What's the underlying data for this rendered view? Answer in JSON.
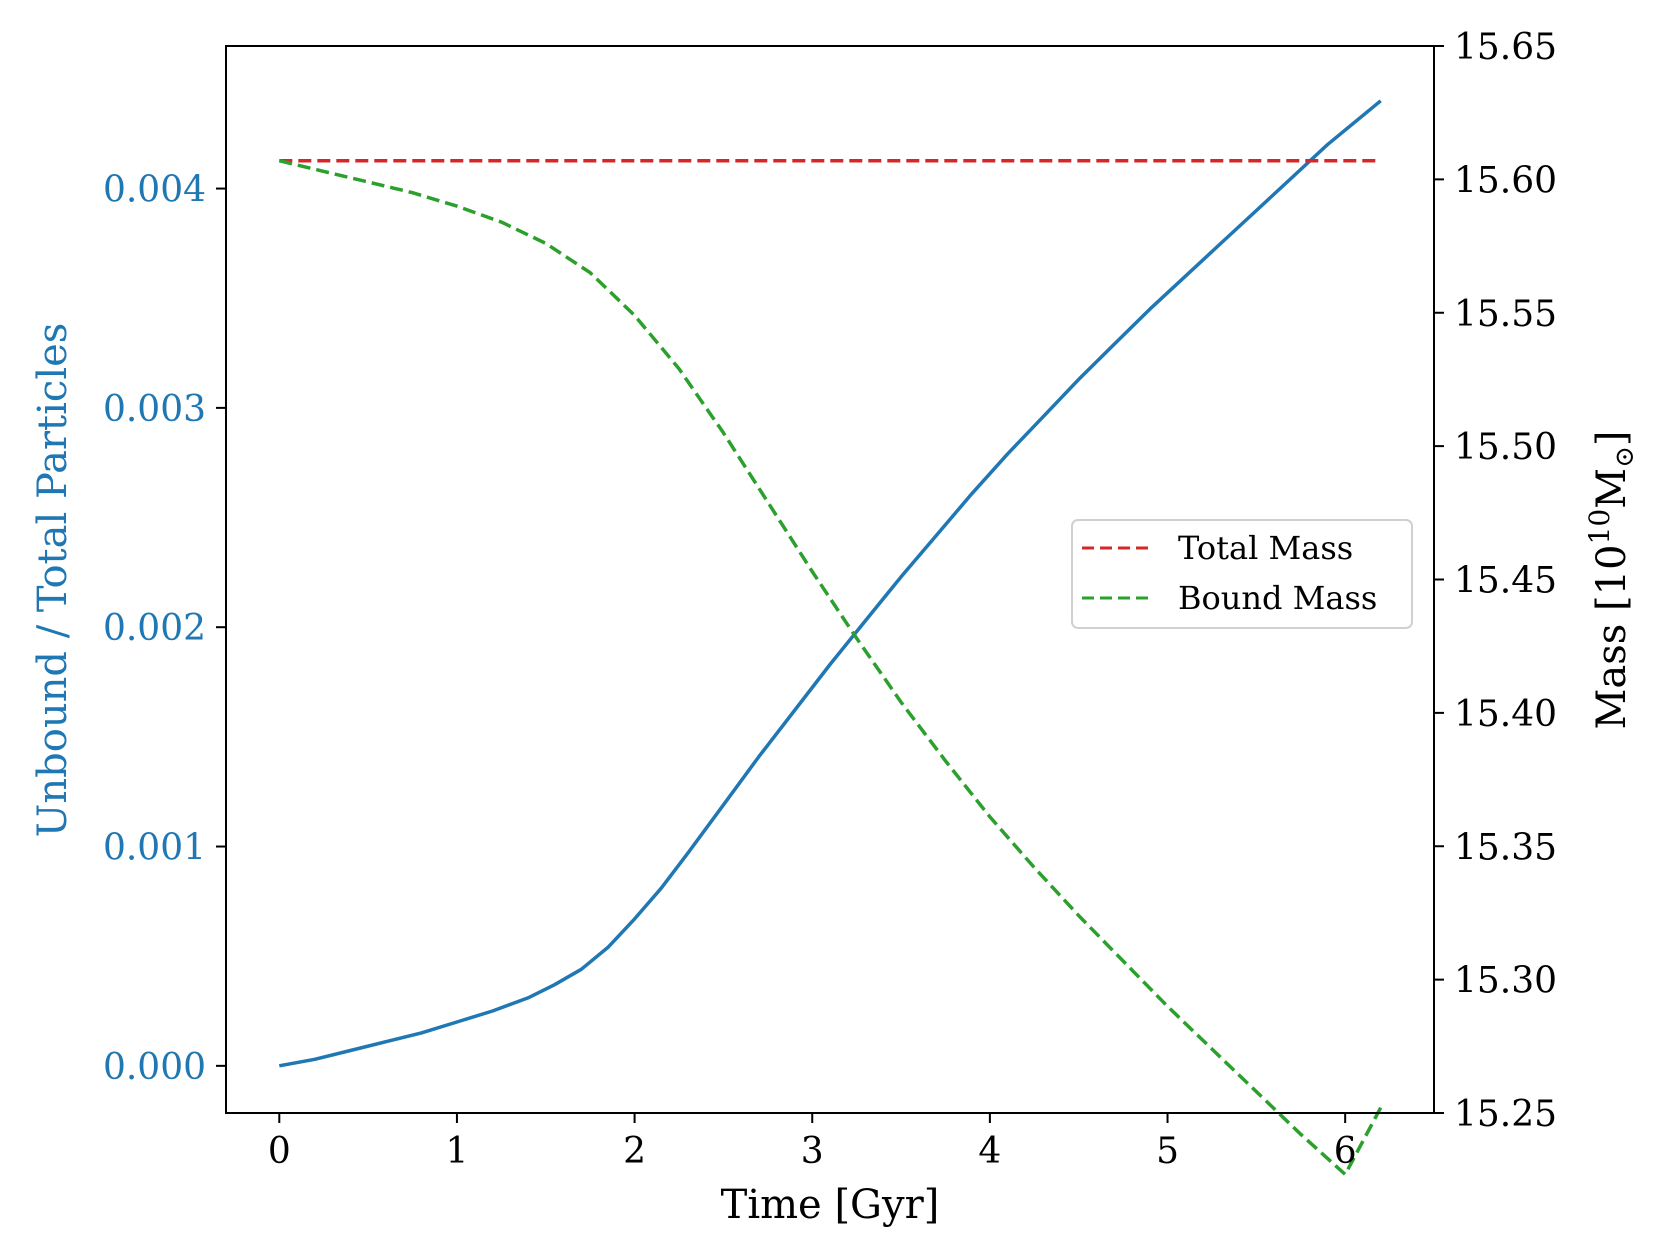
{
  "chart_data": {
    "type": "line",
    "xlabel": "Time [Gyr]",
    "ylabel_left": "Unbound / Total Particles",
    "ylabel_right_prefix": "Mass [10",
    "ylabel_right_exp": "10",
    "ylabel_right_unit": "M",
    "ylabel_right_sub": "⊙",
    "ylabel_right_suffix": "]",
    "xlim": [
      -0.3,
      6.5
    ],
    "ylim_left": [
      -0.000215,
      0.00465
    ],
    "ylim_right": [
      15.25,
      15.65
    ],
    "xticks": [
      0,
      1,
      2,
      3,
      4,
      5,
      6
    ],
    "xtick_labels": [
      "0",
      "1",
      "2",
      "3",
      "4",
      "5",
      "6"
    ],
    "yticks_left": [
      0.0,
      0.001,
      0.002,
      0.003,
      0.004
    ],
    "ytick_labels_left": [
      "0.000",
      "0.001",
      "0.002",
      "0.003",
      "0.004"
    ],
    "yticks_right": [
      15.25,
      15.3,
      15.35,
      15.4,
      15.45,
      15.5,
      15.55,
      15.6,
      15.65
    ],
    "ytick_labels_right": [
      "15.25",
      "15.30",
      "15.35",
      "15.40",
      "15.45",
      "15.50",
      "15.55",
      "15.60",
      "15.65"
    ],
    "left_axis_color": "#1f77b4",
    "series": [
      {
        "name": "Unbound / Total Particles",
        "axis": "left",
        "color": "#1f77b4",
        "style": "solid",
        "x": [
          0,
          0.2,
          0.4,
          0.6,
          0.8,
          1.0,
          1.2,
          1.4,
          1.55,
          1.7,
          1.85,
          2.0,
          2.15,
          2.3,
          2.5,
          2.7,
          2.9,
          3.1,
          3.3,
          3.5,
          3.7,
          3.9,
          4.1,
          4.3,
          4.5,
          4.7,
          4.9,
          5.1,
          5.3,
          5.5,
          5.7,
          5.9,
          6.2
        ],
        "values": [
          0.0,
          3e-05,
          7e-05,
          0.00011,
          0.00015,
          0.0002,
          0.00025,
          0.00031,
          0.00037,
          0.00044,
          0.00054,
          0.00067,
          0.00081,
          0.00097,
          0.00119,
          0.00141,
          0.00162,
          0.00183,
          0.00203,
          0.00223,
          0.00242,
          0.00261,
          0.00279,
          0.00296,
          0.00313,
          0.00329,
          0.00345,
          0.0036,
          0.00375,
          0.0039,
          0.00405,
          0.0042,
          0.0044
        ]
      },
      {
        "name": "Total Mass",
        "axis": "right",
        "color": "#d62728",
        "style": "dashed",
        "x": [
          0,
          6.2
        ],
        "values": [
          15.607,
          15.607
        ]
      },
      {
        "name": "Bound Mass",
        "axis": "right",
        "color": "#2ca02c",
        "style": "dashed",
        "x": [
          0,
          0.25,
          0.5,
          0.75,
          1.0,
          1.25,
          1.5,
          1.75,
          2.0,
          2.25,
          2.5,
          2.75,
          3.0,
          3.25,
          3.5,
          3.75,
          4.0,
          4.25,
          4.5,
          4.75,
          5.0,
          5.25,
          5.5,
          5.75,
          6.0,
          6.2
        ],
        "values": [
          15.607,
          15.603,
          15.599,
          15.595,
          15.59,
          15.584,
          15.576,
          15.565,
          15.549,
          15.529,
          15.505,
          15.479,
          15.453,
          15.428,
          15.404,
          15.382,
          15.361,
          15.342,
          15.324,
          15.307,
          15.29,
          15.274,
          15.258,
          15.242,
          15.227,
          15.252
        ]
      }
    ],
    "legend": {
      "placement": "center-right",
      "entries": [
        "Total Mass",
        "Bound Mass"
      ]
    }
  }
}
